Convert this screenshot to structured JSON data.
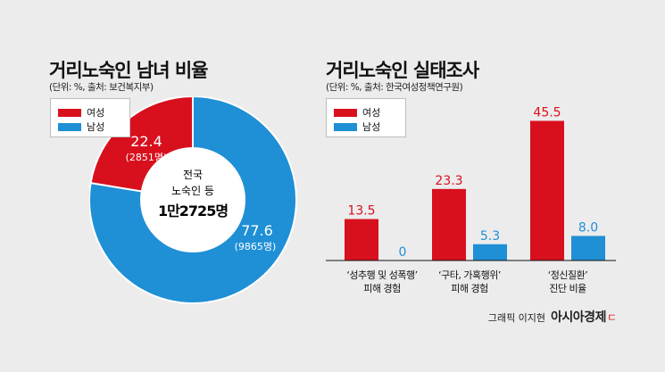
{
  "colors": {
    "female": "#d8101e",
    "male": "#1f8fd6",
    "bg": "#ececec"
  },
  "left": {
    "title": "거리노숙인 남녀 비율",
    "subtitle": "(단위: %, 출처: 보건복지부)",
    "legend": [
      "여성",
      "남성"
    ],
    "center_line1": "전국",
    "center_line2": "노숙인 등",
    "center_total": "1만2725명",
    "female_label": "22.4",
    "female_count": "(2851명)",
    "male_label": "77.6",
    "male_count": "(9865명)"
  },
  "right": {
    "title": "거리노숙인 실태조사",
    "subtitle": "(단위: %, 출처: 한국여성정책연구원)",
    "legend": [
      "여성",
      "남성"
    ]
  },
  "chart_data": [
    {
      "type": "pie",
      "title": "거리노숙인 남녀 비율",
      "categories": [
        "여성",
        "남성"
      ],
      "values": [
        22.4,
        77.6
      ],
      "counts": [
        "2851명",
        "9865명"
      ],
      "center_text": "전국 노숙인 등 1만2725명"
    },
    {
      "type": "bar",
      "title": "거리노숙인 실태조사",
      "categories": [
        [
          "‘성추행 및 성폭행’",
          "피해 경험"
        ],
        [
          "‘구타, 가혹행위’",
          "피해 경험"
        ],
        [
          "‘정신질환’",
          "진단 비율"
        ]
      ],
      "series": [
        {
          "name": "여성",
          "values": [
            13.5,
            23.3,
            45.5
          ]
        },
        {
          "name": "남성",
          "values": [
            0,
            5.3,
            8.0
          ]
        }
      ],
      "value_labels": [
        [
          "13.5",
          "23.3",
          "45.5"
        ],
        [
          "0",
          "5.3",
          "8.0"
        ]
      ],
      "ylim": [
        0,
        50
      ]
    }
  ],
  "footer": {
    "credit": "그래픽 이지현",
    "brand": "아시아경제",
    "brand_mark": "ㄷ"
  }
}
